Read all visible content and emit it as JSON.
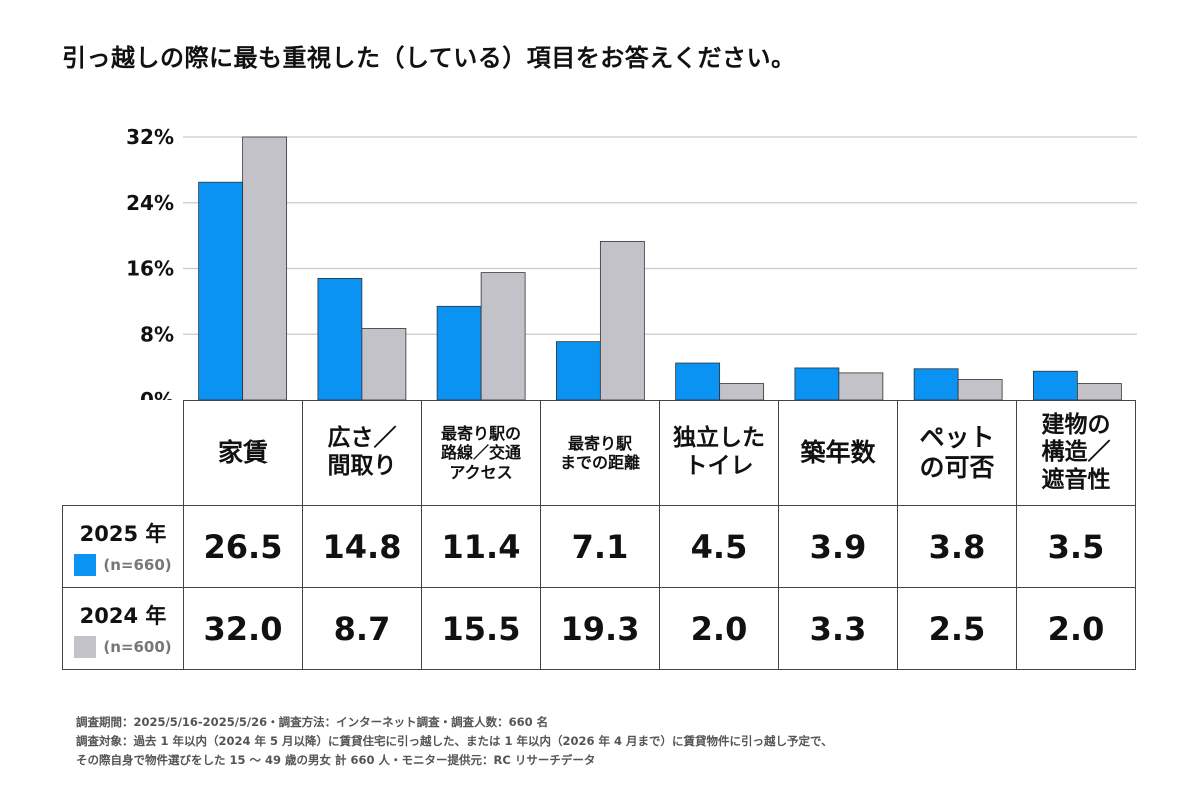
{
  "title": "引っ越しの際に最も重視した（している）項目をお答えください。",
  "colors": {
    "2025": "#0a93f2",
    "2024": "#c3c2c8",
    "grid": "#c9c9c9"
  },
  "chart_data": {
    "type": "bar",
    "title": "引っ越しの際に最も重視した（している）項目をお答えください。",
    "categories": [
      "家賃",
      "広さ／間取り",
      "最寄り駅の路線／交通アクセス",
      "最寄り駅までの距離",
      "独立したトイレ",
      "築年数",
      "ペットの可否",
      "建物の構造／遮音性"
    ],
    "category_lines": [
      [
        "家賃"
      ],
      [
        "広さ／",
        "間取り"
      ],
      [
        "最寄り駅の",
        "路線／交通",
        "アクセス"
      ],
      [
        "最寄り駅",
        "までの距離"
      ],
      [
        "独立した",
        "トイレ"
      ],
      [
        "築年数"
      ],
      [
        "ペット",
        "の可否"
      ],
      [
        "建物の",
        "構造／",
        "遮音性"
      ]
    ],
    "series": [
      {
        "name": "2025 年",
        "n": "(n=660)",
        "values": [
          26.5,
          14.8,
          11.4,
          7.1,
          4.5,
          3.9,
          3.8,
          3.5
        ],
        "labels": [
          "26.5",
          "14.8",
          "11.4",
          "7.1",
          "4.5",
          "3.9",
          "3.8",
          "3.5"
        ]
      },
      {
        "name": "2024 年",
        "n": "(n=600)",
        "values": [
          32.0,
          8.7,
          15.5,
          19.3,
          2.0,
          3.3,
          2.5,
          2.0
        ],
        "labels": [
          "32.0",
          "8.7",
          "15.5",
          "19.3",
          "2.0",
          "3.3",
          "2.5",
          "2.0"
        ]
      }
    ],
    "yticks": [
      "0%",
      "8%",
      "16%",
      "24%",
      "32%"
    ],
    "ylim": [
      0,
      32
    ],
    "grid": true
  },
  "footnote": [
    "調査期間：2025/5/16-2025/5/26・調査方法：インターネット調査・調査人数：660 名",
    "調査対象：過去 1 年以内（2024 年 5 月以降）に賃貸住宅に引っ越した、または 1 年以内（2026 年 4 月まで）に賃貸物件に引っ越し予定で、",
    "その際自身で物件選びをした 15 ～ 49 歳の男女 計 660 人・モニター提供元：RC リサーチデータ"
  ]
}
